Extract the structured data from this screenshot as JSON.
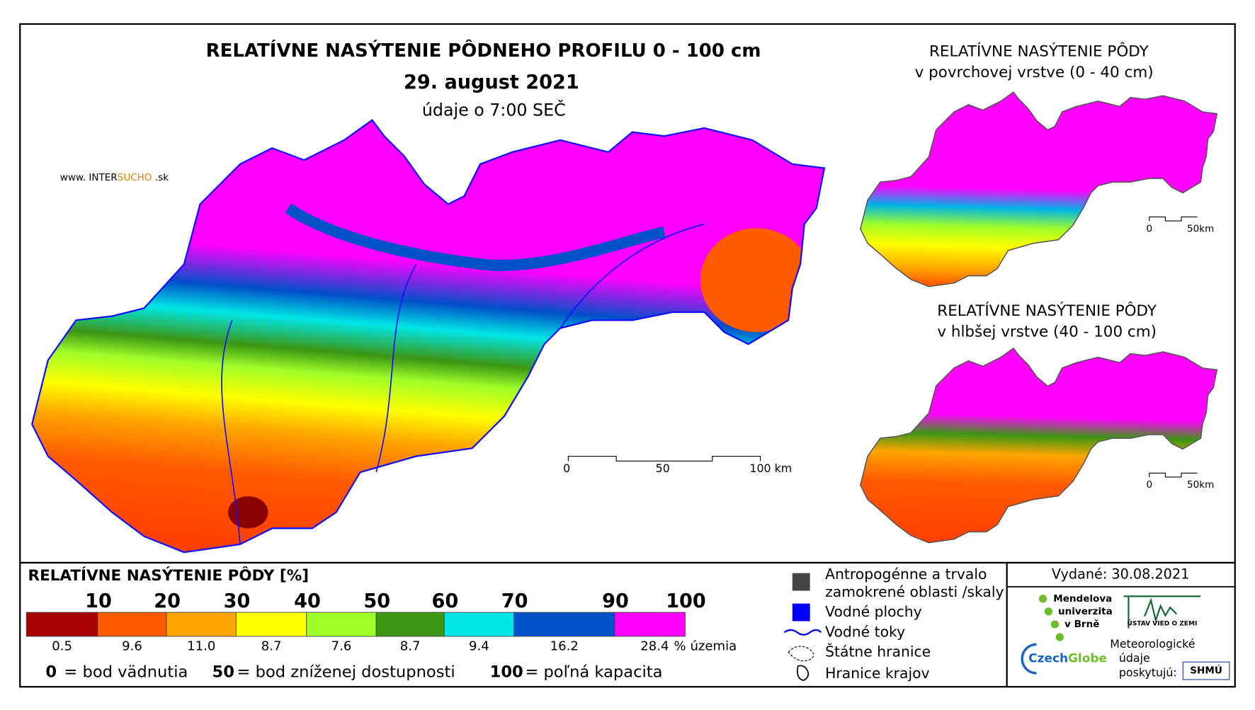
{
  "header": {
    "title": "RELATÍVNE NASÝTENIE PÔDNEHO PROFILU 0 - 100 cm",
    "date": "29. august 2021",
    "time_note": "údaje o 7:00 SEČ",
    "website": {
      "prefix": "www. INTER",
      "highlight": "SUCHO",
      "suffix": " .sk"
    }
  },
  "main_map": {
    "scale_labels": [
      "0",
      "50",
      "100 km"
    ]
  },
  "inset_top": {
    "title": "RELATÍVNE NASÝTENIE PÔDY",
    "subtitle": "v povrchovej vrstve (0 - 40 cm)",
    "scale_labels": [
      "0",
      "50km"
    ]
  },
  "inset_bottom": {
    "title": "RELATÍVNE NASÝTENIE PÔDY",
    "subtitle": "v hlbšej vrstve (40 - 100 cm)",
    "scale_labels": [
      "0",
      "50km"
    ]
  },
  "legend": {
    "title": "RELATÍVNE NASÝTENIE PÔDY [%]",
    "bounds": [
      "10",
      "20",
      "30",
      "40",
      "50",
      "60",
      "70",
      "90",
      "100"
    ],
    "classes": [
      {
        "color": "#a50000",
        "share": "0.5"
      },
      {
        "color": "#ff5a00",
        "share": "9.6"
      },
      {
        "color": "#ffa500",
        "share": "11.0"
      },
      {
        "color": "#ffff00",
        "share": "8.7"
      },
      {
        "color": "#a0ff28",
        "share": "7.6"
      },
      {
        "color": "#3c9614",
        "share": "8.7"
      },
      {
        "color": "#00e6e6",
        "share": "9.4"
      },
      {
        "color": "#0050c8",
        "share": "16.2"
      },
      {
        "color": "#ff00ff",
        "share": "28.4"
      }
    ],
    "share_unit": "% územia",
    "notes": [
      {
        "value": "0",
        "label": "= bod vädnutia"
      },
      {
        "value": "50",
        "label": "= bod zníženej dostupnosti"
      },
      {
        "value": "100",
        "label": "= poľná kapacita"
      }
    ]
  },
  "symbols": [
    "Antropogénne a trvalo",
    "zamokrené oblasti /skaly",
    "Vodné plochy",
    "Vodné toky",
    "Štátne hranice",
    "Hranice krajov"
  ],
  "issued": "Vydané: 30.08.2021",
  "providers": {
    "mendel": [
      "Mendelova",
      "univerzita",
      "v Brně"
    ],
    "uvz": "ÚSTAV VIED O ZEMI",
    "czechglobe": [
      "Czech",
      "Globe"
    ],
    "meteo": [
      "Meteorologické",
      "údaje",
      "poskytujú:"
    ],
    "shmu": "SHMÚ"
  }
}
